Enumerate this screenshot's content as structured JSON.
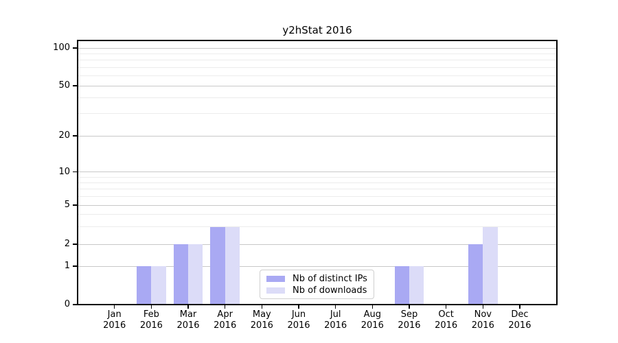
{
  "title": "y2hStat 2016",
  "chart_data": {
    "type": "bar",
    "title": "y2hStat 2016",
    "categories": [
      "Jan",
      "Feb",
      "Mar",
      "Apr",
      "May",
      "Jun",
      "Jul",
      "Aug",
      "Sep",
      "Oct",
      "Nov",
      "Dec"
    ],
    "year_label": "2016",
    "series": [
      {
        "name": "Nb of distinct IPs",
        "color": "#a9a9f3",
        "values": [
          0,
          1,
          2,
          3,
          0,
          0,
          0,
          0,
          1,
          0,
          2,
          0
        ]
      },
      {
        "name": "Nb of downloads",
        "color": "#dcdcf8",
        "values": [
          0,
          1,
          2,
          3,
          0,
          0,
          0,
          0,
          1,
          0,
          3,
          0
        ]
      }
    ],
    "y_axis": {
      "scale": "symlog",
      "major_ticks": [
        0,
        1,
        2,
        5,
        10,
        20,
        50,
        100
      ],
      "minor_ticks": [
        3,
        4,
        6,
        7,
        8,
        9,
        30,
        40,
        60,
        70,
        80,
        90
      ],
      "range": [
        0,
        100
      ]
    },
    "grid": {
      "horizontal_major": true,
      "horizontal_minor": true
    },
    "legend": {
      "position": "inside-bottom-center"
    }
  },
  "colors": {
    "distinct_ips_bar": "#a9a9f3",
    "downloads_bar": "#dcdcf8",
    "major_grid": "#c8c8c8",
    "minor_grid": "#ececec",
    "spine": "#000000"
  }
}
